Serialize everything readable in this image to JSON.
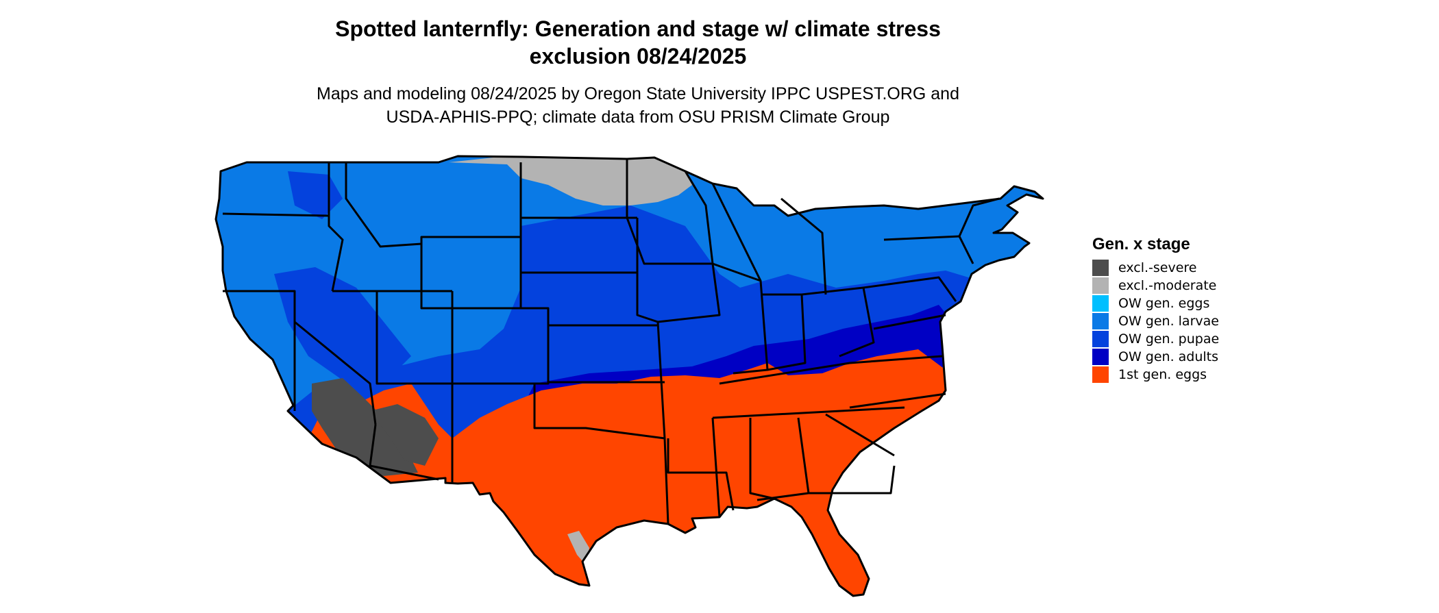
{
  "title": {
    "line1": "Spotted lanternfly: Generation and stage w/ climate stress",
    "line2": "exclusion 08/24/2025"
  },
  "subtitle": {
    "line1": "Maps and modeling 08/24/2025 by Oregon State University IPPC USPEST.ORG and",
    "line2": "USDA-APHIS-PPQ; climate data from OSU PRISM Climate Group"
  },
  "legend": {
    "title": "Gen. x stage",
    "items": [
      {
        "label": "excl.-severe",
        "color": "#4d4d4d"
      },
      {
        "label": "excl.-moderate",
        "color": "#b3b3b3"
      },
      {
        "label": "OW gen. eggs",
        "color": "#00bfff"
      },
      {
        "label": "OW gen. larvae",
        "color": "#0a7ae6"
      },
      {
        "label": "OW gen. pupae",
        "color": "#0442dd"
      },
      {
        "label": "OW gen. adults",
        "color": "#0000c4"
      },
      {
        "label": "1st gen. eggs",
        "color": "#ff4500"
      }
    ]
  },
  "map": {
    "region": "Contiguous United States",
    "boundary_color": "#000000"
  }
}
